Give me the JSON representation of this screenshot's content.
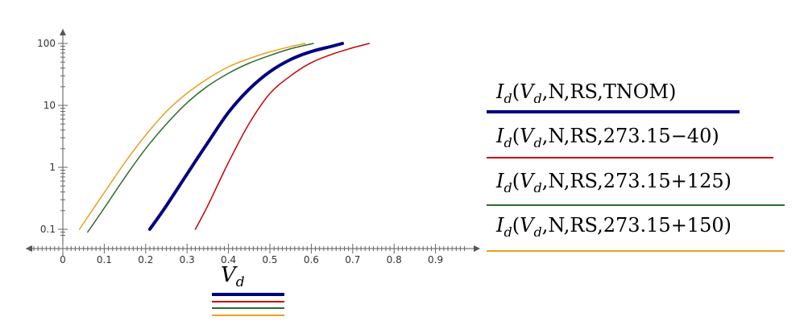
{
  "chart_data": {
    "type": "line",
    "xlabel": "V",
    "xlabel_subscript": "d",
    "xscale": "linear",
    "yscale": "log",
    "xlim": [
      -0.09,
      0.98
    ],
    "ylim": [
      0.08,
      150
    ],
    "x_ticks": [
      0,
      0.1,
      0.2,
      0.3,
      0.4,
      0.5,
      0.6,
      0.7,
      0.8,
      0.9
    ],
    "x_tick_labels": [
      "0",
      "0.1",
      "0.2",
      "0.3",
      "0.4",
      "0.5",
      "0.6",
      "0.7",
      "0.8",
      "0.9"
    ],
    "y_ticks": [
      0.1,
      1,
      10,
      100
    ],
    "y_tick_labels": [
      "0.1",
      "1",
      "10",
      "100"
    ],
    "grid": false,
    "series": [
      {
        "name": "I_d(V_d, N, RS, TNOM)",
        "color": "#000080",
        "thick": true,
        "x": [
          0.21,
          0.25,
          0.3,
          0.35,
          0.4,
          0.45,
          0.5,
          0.55,
          0.6,
          0.65,
          0.675
        ],
        "y": [
          0.1,
          0.24,
          0.78,
          2.5,
          7.7,
          18.3,
          35,
          55,
          74,
          90,
          100
        ]
      },
      {
        "name": "I_d(V_d, N, RS, 273.15-40)",
        "color": "#cc0000",
        "thick": false,
        "x": [
          0.32,
          0.35,
          0.4,
          0.45,
          0.5,
          0.55,
          0.6,
          0.65,
          0.7,
          0.74
        ],
        "y": [
          0.1,
          0.24,
          1.2,
          5.1,
          15.5,
          30,
          49,
          67,
          85,
          100
        ]
      },
      {
        "name": "I_d(V_d, N, RS, 273.15+125)",
        "color": "#2e6b2e",
        "thick": false,
        "x": [
          0.06,
          0.1,
          0.15,
          0.2,
          0.25,
          0.3,
          0.35,
          0.4,
          0.45,
          0.5,
          0.55,
          0.605
        ],
        "y": [
          0.09,
          0.22,
          0.69,
          2.0,
          5.0,
          11.0,
          20.5,
          33,
          48,
          64,
          82,
          100
        ]
      },
      {
        "name": "I_d(V_d, N, RS, 273.15+150)",
        "color": "#e8a020",
        "thick": false,
        "x": [
          0.04,
          0.1,
          0.15,
          0.2,
          0.25,
          0.3,
          0.35,
          0.4,
          0.45,
          0.5,
          0.55,
          0.585
        ],
        "y": [
          0.1,
          0.39,
          1.2,
          3.3,
          8.0,
          15.7,
          27,
          42,
          57,
          73,
          89,
          100
        ]
      }
    ]
  },
  "legend": {
    "entries": [
      {
        "text": "Iₐ(Vₐ,N,RS,TNOM)",
        "label_main": "I",
        "label_sub": "d",
        "args_prefix": "(",
        "v_main": "V",
        "v_sub": "d",
        "args_rest": ",N,RS,TNOM)",
        "color": "#000080"
      },
      {
        "label_main": "I",
        "label_sub": "d",
        "args_prefix": "(",
        "v_main": "V",
        "v_sub": "d",
        "args_rest": ",N,RS,273.15−40)",
        "color": "#cc0000"
      },
      {
        "label_main": "I",
        "label_sub": "d",
        "args_prefix": "(",
        "v_main": "V",
        "v_sub": "d",
        "args_rest": ",N,RS,273.15+125)",
        "color": "#2e6b2e"
      },
      {
        "label_main": "I",
        "label_sub": "d",
        "args_prefix": "(",
        "v_main": "V",
        "v_sub": "d",
        "args_rest": ",N,RS,273.15+150)",
        "color": "#e8a020"
      }
    ]
  }
}
